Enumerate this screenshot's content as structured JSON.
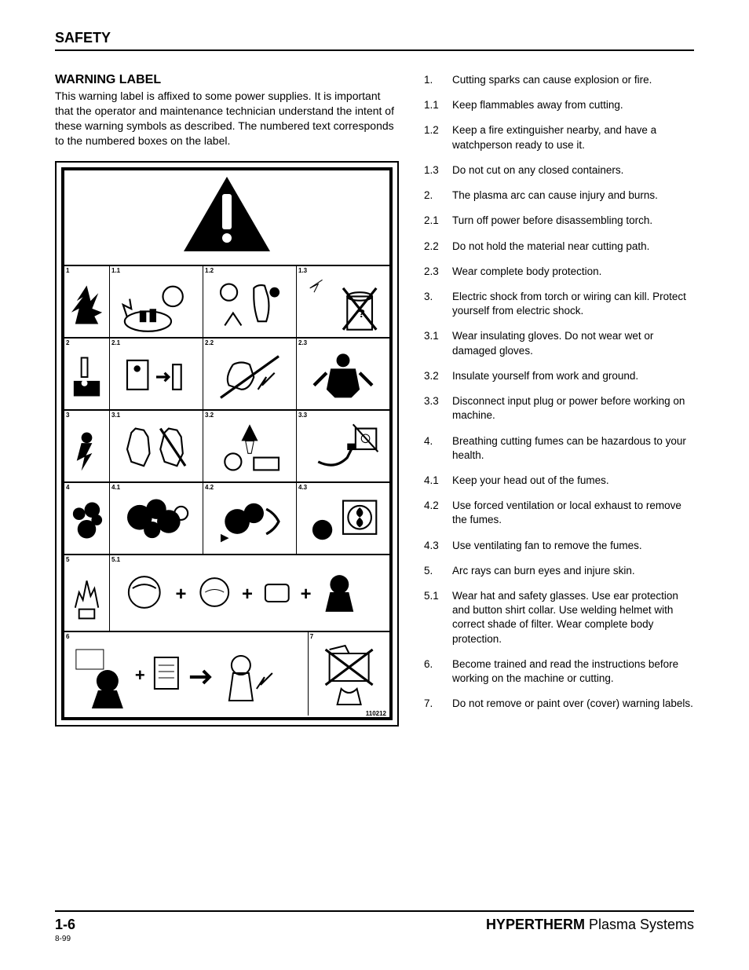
{
  "section_header": "SAFETY",
  "subheading": "WARNING LABEL",
  "intro": "This warning label is affixed to some power supplies. It is important that the operator and maintenance technician understand the intent of these warning symbols as described. The numbered text corresponds to the numbered boxes on the label.",
  "figure": {
    "part_number": "110212",
    "rows": [
      {
        "main": "1",
        "subs": [
          "1.1",
          "1.2",
          "1.3"
        ]
      },
      {
        "main": "2",
        "subs": [
          "2.1",
          "2.2",
          "2.3"
        ]
      },
      {
        "main": "3",
        "subs": [
          "3.1",
          "3.2",
          "3.3"
        ]
      },
      {
        "main": "4",
        "subs": [
          "4.1",
          "4.2",
          "4.3"
        ]
      },
      {
        "main": "5",
        "subs": [
          "5.1"
        ]
      },
      {
        "main": "6",
        "subs": [
          "7"
        ]
      }
    ]
  },
  "warnings": [
    {
      "num": "1.",
      "text": "Cutting sparks can cause explosion or fire."
    },
    {
      "num": "1.1",
      "text": "Keep flammables away from cutting."
    },
    {
      "num": "1.2",
      "text": "Keep a fire extinguisher nearby, and have a watchperson ready to use it."
    },
    {
      "num": "1.3",
      "text": "Do not cut on any closed containers."
    },
    {
      "num": "2.",
      "text": "The plasma arc can cause injury and burns."
    },
    {
      "num": "2.1",
      "text": "Turn off power before disassembling torch."
    },
    {
      "num": "2.2",
      "text": "Do not hold the material near cutting path."
    },
    {
      "num": "2.3",
      "text": "Wear complete body protection."
    },
    {
      "num": "3.",
      "text": "Electric shock from torch or wiring can kill. Protect yourself from electric shock."
    },
    {
      "num": "3.1",
      "text": "Wear insulating gloves. Do not wear wet or damaged gloves."
    },
    {
      "num": "3.2",
      "text": "Insulate yourself from work and ground."
    },
    {
      "num": "3.3",
      "text": "Disconnect input plug or power before working on machine."
    },
    {
      "num": "4.",
      "text": "Breathing cutting fumes can be hazardous to your health."
    },
    {
      "num": "4.1",
      "text": "Keep your head out of the fumes."
    },
    {
      "num": "4.2",
      "text": "Use forced ventilation or local exhaust to remove the fumes."
    },
    {
      "num": "4.3",
      "text": "Use ventilating fan to remove the fumes."
    },
    {
      "num": "5.",
      "text": "Arc rays can burn eyes and injure skin."
    },
    {
      "num": "5.1",
      "text": "Wear hat and safety glasses. Use ear protection and button shirt collar. Use welding helmet with correct shade of filter. Wear complete body protection."
    },
    {
      "num": "6.",
      "text": "Become trained and read the instructions before working on the machine or cutting."
    },
    {
      "num": "7.",
      "text": "Do not remove or paint over (cover) warning labels."
    }
  ],
  "footer": {
    "page": "1-6",
    "date": "8-99",
    "brand_bold": "HYPERTHERM",
    "brand_rest": " Plasma Systems"
  },
  "colors": {
    "text": "#000000",
    "background": "#ffffff",
    "border": "#000000"
  }
}
